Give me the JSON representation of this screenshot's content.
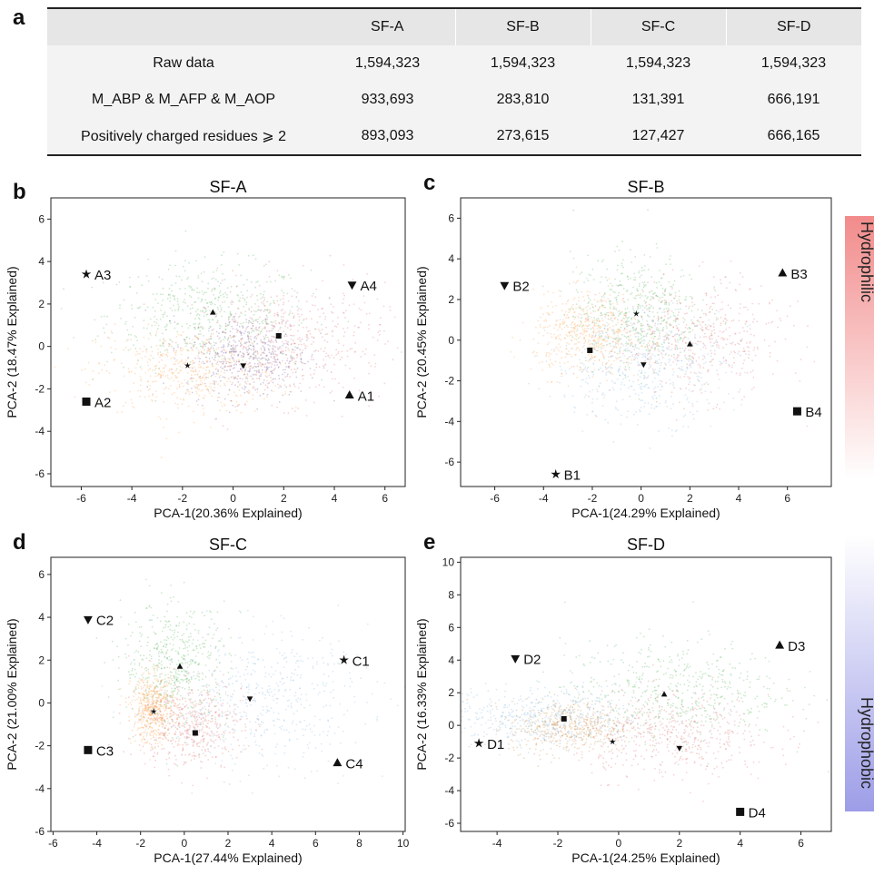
{
  "panel_labels": {
    "a": "a",
    "b": "b",
    "c": "c",
    "d": "d",
    "e": "e"
  },
  "table": {
    "columns": [
      "",
      "SF-A",
      "SF-B",
      "SF-C",
      "SF-D"
    ],
    "rows": [
      [
        "Raw data",
        "1,594,323",
        "1,594,323",
        "1,594,323",
        "1,594,323"
      ],
      [
        "M_ABP & M_AFP & M_AOP",
        "933,693",
        "283,810",
        "131,391",
        "666,191"
      ],
      [
        "Positively charged residues ⩾ 2",
        "893,093",
        "273,615",
        "127,427",
        "666,165"
      ]
    ]
  },
  "colorbar": {
    "top_label": "Hydrophilic",
    "bottom_label": "Hydrophobic",
    "top_color": "#f28b8b",
    "bottom_color": "#9d9de8"
  },
  "chart_data": [
    {
      "type": "scatter",
      "panel": "b",
      "title": "SF-A",
      "xlabel": "PCA-1(20.36% Explained)",
      "ylabel": "PCA-2 (18.47% Explained)",
      "xlim": [
        -7.2,
        6.8
      ],
      "ylim": [
        -6.6,
        7.0
      ],
      "xticks": [
        -6,
        -4,
        -2,
        0,
        2,
        4,
        6
      ],
      "yticks": [
        -6,
        -4,
        -2,
        0,
        2,
        4,
        6
      ],
      "clusters": [
        {
          "color": "#4caf50",
          "cx": -1.0,
          "cy": 1.5,
          "sx": 2.0,
          "sy": 1.2
        },
        {
          "color": "#ff9a3c",
          "cx": -1.8,
          "cy": -1.2,
          "sx": 1.8,
          "sy": 1.0
        },
        {
          "color": "#e06666",
          "cx": 2.2,
          "cy": 0.2,
          "sx": 1.9,
          "sy": 1.4
        },
        {
          "color": "#6a4a8e",
          "cx": 0.6,
          "cy": -0.4,
          "sx": 1.2,
          "sy": 1.0
        }
      ],
      "markers": [
        {
          "symbol": "triangle-up",
          "x": -0.8,
          "y": 1.6,
          "label": ""
        },
        {
          "symbol": "star",
          "x": -1.8,
          "y": -0.9,
          "label": ""
        },
        {
          "symbol": "triangle-down",
          "x": 0.4,
          "y": -0.9,
          "label": ""
        },
        {
          "symbol": "square",
          "x": 1.8,
          "y": 0.5,
          "label": ""
        },
        {
          "symbol": "star",
          "x": -5.8,
          "y": 3.4,
          "label": "A3"
        },
        {
          "symbol": "triangle-down",
          "x": 4.7,
          "y": 2.9,
          "label": "A4"
        },
        {
          "symbol": "square",
          "x": -5.8,
          "y": -2.6,
          "label": "A2"
        },
        {
          "symbol": "triangle-up",
          "x": 4.6,
          "y": -2.3,
          "label": "A1"
        }
      ]
    },
    {
      "type": "scatter",
      "panel": "c",
      "title": "SF-B",
      "xlabel": "PCA-1(24.29% Explained)",
      "ylabel": "PCA-2 (20.45% Explained)",
      "xlim": [
        -7.4,
        7.8
      ],
      "ylim": [
        -7.2,
        7.0
      ],
      "xticks": [
        -6,
        -4,
        -2,
        0,
        2,
        4,
        6
      ],
      "yticks": [
        -6,
        -4,
        -2,
        0,
        2,
        4,
        6
      ],
      "clusters": [
        {
          "color": "#4caf50",
          "cx": -0.2,
          "cy": 1.4,
          "sx": 1.3,
          "sy": 1.4
        },
        {
          "color": "#ff9a3c",
          "cx": -2.2,
          "cy": 0.3,
          "sx": 1.1,
          "sy": 1.0
        },
        {
          "color": "#e06666",
          "cx": 2.2,
          "cy": 0.0,
          "sx": 1.8,
          "sy": 1.4
        },
        {
          "color": "#7fb3e0",
          "cx": 0.0,
          "cy": -1.2,
          "sx": 1.8,
          "sy": 1.4
        }
      ],
      "markers": [
        {
          "symbol": "star",
          "x": -0.2,
          "y": 1.3,
          "label": ""
        },
        {
          "symbol": "square",
          "x": -2.1,
          "y": -0.5,
          "label": ""
        },
        {
          "symbol": "triangle-up",
          "x": 2.0,
          "y": -0.2,
          "label": ""
        },
        {
          "symbol": "triangle-down",
          "x": 0.1,
          "y": -1.2,
          "label": ""
        },
        {
          "symbol": "triangle-down",
          "x": -5.6,
          "y": 2.7,
          "label": "B2"
        },
        {
          "symbol": "triangle-up",
          "x": 5.8,
          "y": 3.3,
          "label": "B3"
        },
        {
          "symbol": "square",
          "x": 6.4,
          "y": -3.5,
          "label": "B4"
        },
        {
          "symbol": "star",
          "x": -3.5,
          "y": -6.6,
          "label": "B1"
        }
      ]
    },
    {
      "type": "scatter",
      "panel": "d",
      "title": "SF-C",
      "xlabel": "PCA-1(27.44% Explained)",
      "ylabel": "PCA-2 (21.00% Explained)",
      "xlim": [
        -6.1,
        10.1
      ],
      "ylim": [
        -6.0,
        6.8
      ],
      "xticks": [
        -6,
        -4,
        -2,
        0,
        2,
        4,
        6,
        8,
        10
      ],
      "yticks": [
        -6,
        -4,
        -2,
        0,
        2,
        4,
        6
      ],
      "clusters": [
        {
          "color": "#4caf50",
          "cx": -0.4,
          "cy": 1.8,
          "sx": 1.2,
          "sy": 1.4
        },
        {
          "color": "#ff9a3c",
          "cx": -1.4,
          "cy": -0.3,
          "sx": 0.5,
          "sy": 0.8
        },
        {
          "color": "#e06666",
          "cx": 0.3,
          "cy": -1.0,
          "sx": 1.2,
          "sy": 1.0
        },
        {
          "color": "#7fb3e0",
          "cx": 3.5,
          "cy": 0.2,
          "sx": 2.4,
          "sy": 1.6
        }
      ],
      "markers": [
        {
          "symbol": "triangle-up",
          "x": -0.2,
          "y": 1.7,
          "label": ""
        },
        {
          "symbol": "star",
          "x": -1.4,
          "y": -0.4,
          "label": ""
        },
        {
          "symbol": "square",
          "x": 0.5,
          "y": -1.4,
          "label": ""
        },
        {
          "symbol": "triangle-down",
          "x": 3.0,
          "y": 0.2,
          "label": ""
        },
        {
          "symbol": "triangle-down",
          "x": -4.4,
          "y": 3.9,
          "label": "C2"
        },
        {
          "symbol": "star",
          "x": 7.3,
          "y": 2.0,
          "label": "C1"
        },
        {
          "symbol": "square",
          "x": -4.4,
          "y": -2.2,
          "label": "C3"
        },
        {
          "symbol": "triangle-up",
          "x": 7.0,
          "y": -2.8,
          "label": "C4"
        }
      ]
    },
    {
      "type": "scatter",
      "panel": "e",
      "title": "SF-D",
      "xlabel": "PCA-1(24.25% Explained)",
      "ylabel": "PCA-2 (16.33% Explained)",
      "xlim": [
        -5.2,
        7.0
      ],
      "ylim": [
        -6.5,
        10.3
      ],
      "xticks": [
        -4,
        -2,
        0,
        2,
        4,
        6
      ],
      "yticks": [
        -6,
        -4,
        -2,
        0,
        2,
        4,
        6,
        8,
        10
      ],
      "clusters": [
        {
          "color": "#7fb3e0",
          "cx": -2.5,
          "cy": 0.5,
          "sx": 1.6,
          "sy": 0.9
        },
        {
          "color": "#c98a3c",
          "cx": -1.6,
          "cy": -0.1,
          "sx": 1.0,
          "sy": 0.8
        },
        {
          "color": "#4caf50",
          "cx": 1.8,
          "cy": 2.2,
          "sx": 1.8,
          "sy": 1.5
        },
        {
          "color": "#e06666",
          "cx": 1.8,
          "cy": -0.6,
          "sx": 1.6,
          "sy": 1.3
        }
      ],
      "markers": [
        {
          "symbol": "square",
          "x": -1.8,
          "y": 0.4,
          "label": ""
        },
        {
          "symbol": "star",
          "x": -0.2,
          "y": -1.0,
          "label": ""
        },
        {
          "symbol": "triangle-up",
          "x": 1.5,
          "y": 1.9,
          "label": ""
        },
        {
          "symbol": "triangle-down",
          "x": 2.0,
          "y": -1.4,
          "label": ""
        },
        {
          "symbol": "triangle-down",
          "x": -3.4,
          "y": 4.1,
          "label": "D2"
        },
        {
          "symbol": "triangle-up",
          "x": 5.3,
          "y": 4.9,
          "label": "D3"
        },
        {
          "symbol": "star",
          "x": -4.6,
          "y": -1.1,
          "label": "D1"
        },
        {
          "symbol": "square",
          "x": 4.0,
          "y": -5.3,
          "label": "D4"
        }
      ]
    }
  ]
}
